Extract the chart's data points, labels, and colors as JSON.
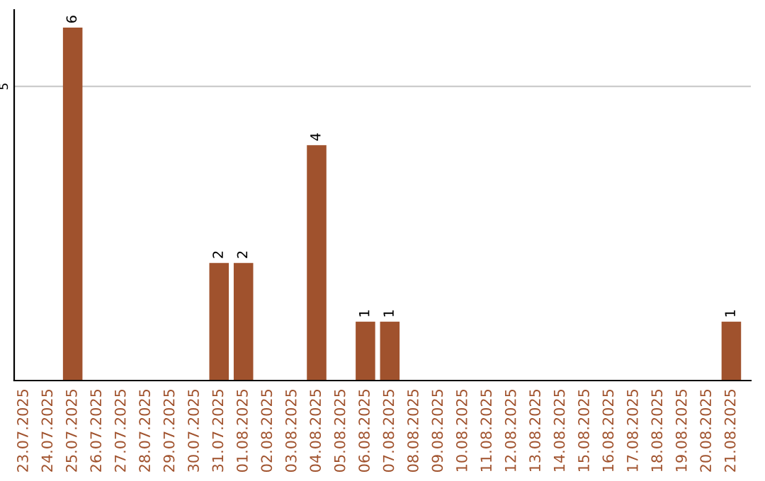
{
  "chart_data": {
    "type": "bar",
    "categories": [
      "23.07.2025",
      "24.07.2025",
      "25.07.2025",
      "26.07.2025",
      "27.07.2025",
      "28.07.2025",
      "29.07.2025",
      "30.07.2025",
      "31.07.2025",
      "01.08.2025",
      "02.08.2025",
      "03.08.2025",
      "04.08.2025",
      "05.08.2025",
      "06.08.2025",
      "07.08.2025",
      "08.08.2025",
      "09.08.2025",
      "10.08.2025",
      "11.08.2025",
      "12.08.2025",
      "13.08.2025",
      "14.08.2025",
      "15.08.2025",
      "16.08.2025",
      "17.08.2025",
      "18.08.2025",
      "19.08.2025",
      "20.08.2025",
      "21.08.2025"
    ],
    "values": [
      0,
      0,
      6,
      0,
      0,
      0,
      0,
      0,
      2,
      2,
      0,
      0,
      4,
      0,
      1,
      1,
      0,
      0,
      0,
      0,
      0,
      0,
      0,
      0,
      0,
      0,
      0,
      0,
      0,
      1
    ],
    "color": "#a0522d",
    "value_labels": [
      null,
      null,
      "6",
      null,
      null,
      null,
      null,
      null,
      "2",
      "2",
      null,
      null,
      "4",
      null,
      "1",
      "1",
      null,
      null,
      null,
      null,
      null,
      null,
      null,
      null,
      null,
      null,
      null,
      null,
      null,
      "1"
    ],
    "ylim": [
      0,
      6.3
    ],
    "yticks": [
      5
    ],
    "grid": "y"
  }
}
